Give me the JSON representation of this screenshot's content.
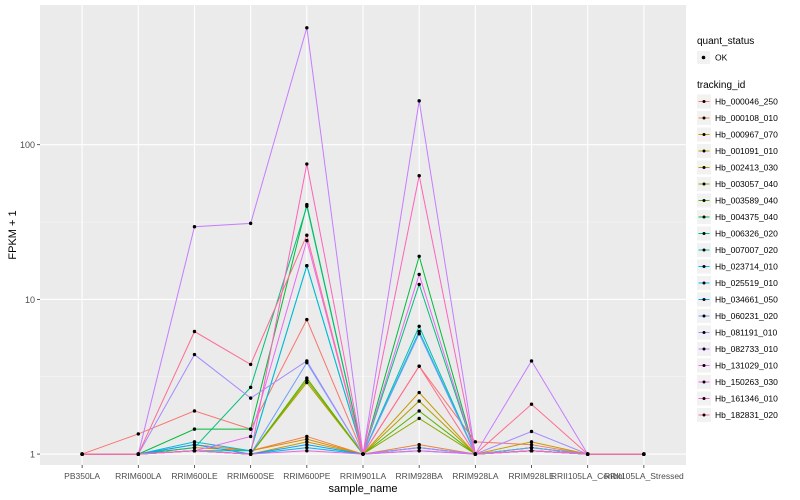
{
  "chart_data": {
    "type": "line",
    "title": "",
    "xlabel": "sample_name",
    "ylabel": "FPKM + 1",
    "y_scale": "log10",
    "ylim": [
      0.85,
      800
    ],
    "y_ticks": [
      1,
      10,
      100
    ],
    "y_tick_labels": [
      "1",
      "10",
      "100"
    ],
    "grid": true,
    "legend_position": "right",
    "categories": [
      "PB350LA",
      "RRIM600LA",
      "RRIM600LE",
      "RRIM600SE",
      "RRIM600PE",
      "RRIM901LA",
      "RRIM928BA",
      "RRIM928LA",
      "RRIM928LE",
      "RRII105LA_Control",
      "RRII105LA_Stressed"
    ],
    "point_legend": {
      "title": "quant_status",
      "entries": [
        "OK"
      ]
    },
    "series_legend_title": "tracking_id",
    "series": [
      {
        "name": "Hb_000046_250",
        "color": "#F8766D",
        "values": [
          1,
          1.35,
          1.9,
          1.45,
          7.4,
          1,
          3.7,
          1.2,
          1.15,
          1,
          1
        ]
      },
      {
        "name": "Hb_000108_010",
        "color": "#EE8043",
        "values": [
          1,
          1,
          1.15,
          1.05,
          1.3,
          1,
          1.15,
          1,
          1.05,
          1,
          1
        ]
      },
      {
        "name": "Hb_000967_070",
        "color": "#DF8C00",
        "values": [
          1,
          1,
          1.1,
          1.05,
          1.25,
          1,
          1.1,
          1,
          1.05,
          1,
          1
        ]
      },
      {
        "name": "Hb_001091_010",
        "color": "#C99800",
        "values": [
          1,
          1,
          1.05,
          1,
          1.2,
          1,
          2.5,
          1,
          1.2,
          1,
          1
        ]
      },
      {
        "name": "Hb_002413_030",
        "color": "#AEA200",
        "values": [
          1,
          1,
          1.05,
          1,
          2.9,
          1,
          2.2,
          1,
          1.1,
          1,
          1
        ]
      },
      {
        "name": "Hb_003057_040",
        "color": "#8AAB00",
        "values": [
          1,
          1,
          1.05,
          1,
          3.0,
          1,
          1.7,
          1,
          1.05,
          1,
          1
        ]
      },
      {
        "name": "Hb_003589_040",
        "color": "#53B400",
        "values": [
          1,
          1,
          1.05,
          1,
          3.1,
          1,
          1.9,
          1,
          1.05,
          1,
          1
        ]
      },
      {
        "name": "Hb_004375_040",
        "color": "#00BA38",
        "values": [
          1,
          1,
          1.45,
          1.45,
          41,
          1,
          19,
          1,
          1.1,
          1,
          1
        ]
      },
      {
        "name": "Hb_006326_020",
        "color": "#00BF7D",
        "values": [
          1,
          1,
          1.1,
          2.7,
          40,
          1,
          12.5,
          1,
          1.05,
          1,
          1
        ]
      },
      {
        "name": "Hb_007007_020",
        "color": "#00C0AF",
        "values": [
          1,
          1,
          1.05,
          1.05,
          16.5,
          1,
          6.7,
          1,
          1.05,
          1,
          1
        ]
      },
      {
        "name": "Hb_023714_010",
        "color": "#00BCD8",
        "values": [
          1,
          1,
          1.2,
          1.05,
          16.5,
          1,
          6.2,
          1,
          1.05,
          1,
          1
        ]
      },
      {
        "name": "Hb_025519_010",
        "color": "#00B5EE",
        "values": [
          1,
          1,
          1.05,
          1,
          1.1,
          1,
          1.05,
          1,
          1.05,
          1,
          1
        ]
      },
      {
        "name": "Hb_034661_050",
        "color": "#00A5FF",
        "values": [
          1,
          1,
          1.15,
          1,
          1.15,
          1,
          1.1,
          1,
          1.05,
          1,
          1
        ]
      },
      {
        "name": "Hb_060231_020",
        "color": "#6D9EFF",
        "values": [
          1,
          1,
          1.05,
          1,
          3.9,
          1,
          6.0,
          1,
          1.1,
          1,
          1
        ]
      },
      {
        "name": "Hb_081191_010",
        "color": "#A58AFF",
        "values": [
          1,
          1,
          4.4,
          2.3,
          4.0,
          1,
          1.1,
          1,
          1.4,
          1,
          1
        ]
      },
      {
        "name": "Hb_082733_010",
        "color": "#C77CFF",
        "values": [
          1,
          1,
          29.5,
          31,
          570,
          1,
          192,
          1,
          4.0,
          1,
          1
        ]
      },
      {
        "name": "Hb_131029_010",
        "color": "#E76BF3",
        "values": [
          1,
          1,
          1.05,
          1.3,
          24,
          1,
          14.5,
          1,
          1.05,
          1,
          1
        ]
      },
      {
        "name": "Hb_150263_030",
        "color": "#F763E0",
        "values": [
          1,
          1,
          1.05,
          1,
          1.05,
          1,
          1.05,
          1,
          1.05,
          1,
          1
        ]
      },
      {
        "name": "Hb_161346_010",
        "color": "#FF62BC",
        "values": [
          1,
          1,
          1.05,
          1,
          75,
          1,
          63,
          1,
          1.05,
          1,
          1
        ]
      },
      {
        "name": "Hb_182831_020",
        "color": "#FF6C91",
        "values": [
          1,
          1,
          6.2,
          3.8,
          26,
          1,
          3.7,
          1,
          2.1,
          1,
          1
        ]
      }
    ]
  }
}
